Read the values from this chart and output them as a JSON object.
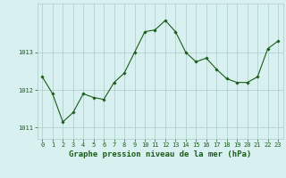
{
  "x": [
    0,
    1,
    2,
    3,
    4,
    5,
    6,
    7,
    8,
    9,
    10,
    11,
    12,
    13,
    14,
    15,
    16,
    17,
    18,
    19,
    20,
    21,
    22,
    23
  ],
  "y": [
    1012.35,
    1011.9,
    1011.15,
    1011.4,
    1011.9,
    1011.8,
    1011.75,
    1012.2,
    1012.45,
    1013.0,
    1013.55,
    1013.6,
    1013.85,
    1013.55,
    1013.0,
    1012.75,
    1012.85,
    1012.55,
    1012.3,
    1012.2,
    1012.2,
    1012.35,
    1013.1,
    1013.3
  ],
  "line_color": "#1a5c1a",
  "marker": "D",
  "marker_size": 1.8,
  "bg_color": "#d9f0f0",
  "grid_color": "#aacccc",
  "xlabel": "Graphe pression niveau de la mer (hPa)",
  "xlabel_color": "#1a5c1a",
  "tick_color": "#1a5c1a",
  "ylim": [
    1010.7,
    1014.3
  ],
  "yticks": [
    1011,
    1012,
    1013
  ],
  "xticks": [
    0,
    1,
    2,
    3,
    4,
    5,
    6,
    7,
    8,
    9,
    10,
    11,
    12,
    13,
    14,
    15,
    16,
    17,
    18,
    19,
    20,
    21,
    22,
    23
  ],
  "tick_fontsize": 5.0,
  "xlabel_fontsize": 6.5,
  "line_width": 0.8
}
